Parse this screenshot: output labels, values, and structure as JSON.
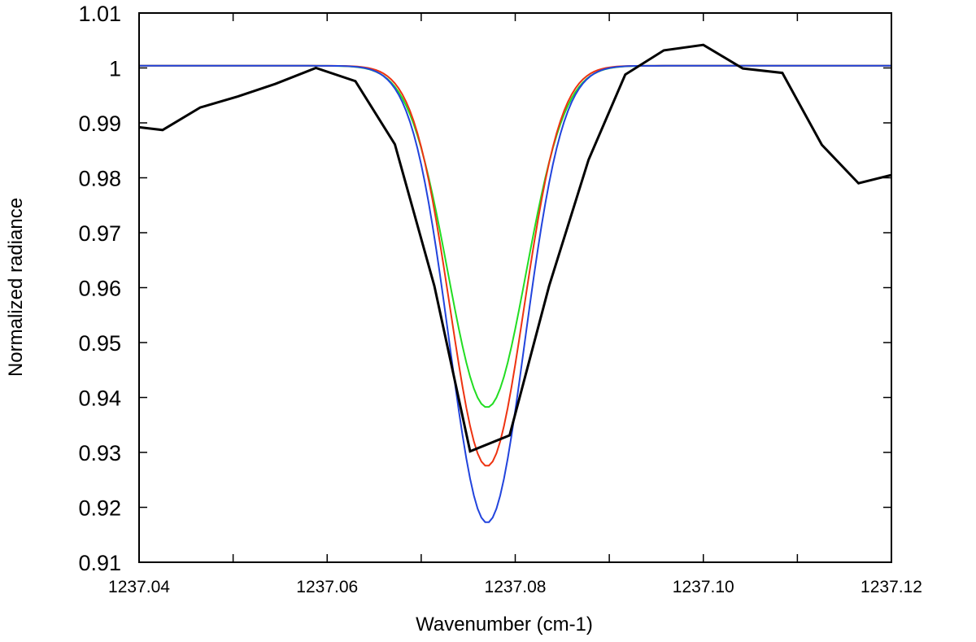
{
  "chart_data": {
    "type": "line",
    "title": "",
    "xlabel": "Wavenumber (cm-1)",
    "ylabel": "Normalized radiance",
    "xlim": [
      1237.04,
      1237.12
    ],
    "ylim": [
      0.91,
      1.01
    ],
    "grid": false,
    "legend": "none",
    "x_tick_labels": [
      "1237.04",
      "1237.06",
      "1237.08",
      "1237.10",
      "1237.12"
    ],
    "x_tick_values": [
      1237.04,
      1237.06,
      1237.08,
      1237.1,
      1237.12
    ],
    "x_minor_ticks": [
      1237.05,
      1237.07,
      1237.09,
      1237.11
    ],
    "y_tick_labels": [
      "0.91",
      "0.92",
      "0.93",
      "0.94",
      "0.95",
      "0.96",
      "0.97",
      "0.98",
      "0.99",
      "1",
      "1.01"
    ],
    "y_tick_values": [
      0.91,
      0.92,
      0.93,
      0.94,
      0.95,
      0.96,
      0.97,
      0.98,
      0.99,
      1.0,
      1.01
    ],
    "series": [
      {
        "color": "#000000",
        "width": 3,
        "x": [
          1237.04,
          1237.0425,
          1237.0465,
          1237.0505,
          1237.0545,
          1237.0588,
          1237.063,
          1237.0672,
          1237.0714,
          1237.0752,
          1237.0794,
          1237.0836,
          1237.0878,
          1237.0917,
          1237.0958,
          1237.1,
          1237.1042,
          1237.1084,
          1237.1126,
          1237.1165,
          1237.12
        ],
        "y": [
          0.9892,
          0.9887,
          0.9928,
          0.9948,
          0.9971,
          1.0,
          0.9976,
          0.9861,
          0.9603,
          0.9302,
          0.9331,
          0.9603,
          0.9833,
          0.9988,
          1.0032,
          1.0042,
          0.9999,
          0.9991,
          0.986,
          0.979,
          0.9805
        ]
      },
      {
        "color": "#22dd22",
        "width": 2,
        "center": 1237.077,
        "sigma": 0.00415,
        "depth": 0.0622,
        "baseline": 1.0004
      },
      {
        "color": "#ee3311",
        "width": 2,
        "center": 1237.077,
        "sigma": 0.00392,
        "depth": 0.0729,
        "baseline": 1.0004
      },
      {
        "color": "#2244dd",
        "width": 2,
        "center": 1237.077,
        "sigma": 0.004,
        "depth": 0.0832,
        "baseline": 1.0004
      }
    ]
  }
}
